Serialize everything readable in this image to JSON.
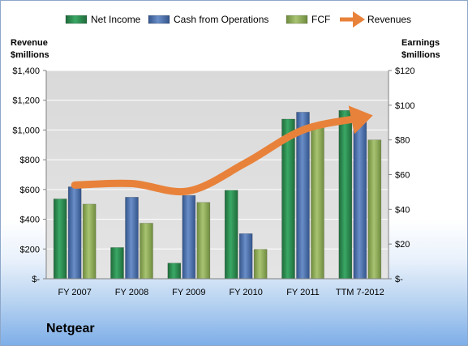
{
  "chart_data": {
    "type": "bar",
    "company": "Netgear",
    "categories": [
      "FY 2007",
      "FY 2008",
      "FY 2009",
      "FY 2010",
      "FY 2011",
      "TTM 7-2012"
    ],
    "series": [
      {
        "name": "Net Income",
        "axis": "right",
        "values": [
          46,
          18,
          9,
          51,
          92,
          97
        ]
      },
      {
        "name": "Cash from Operations",
        "axis": "right",
        "values": [
          53,
          47,
          48,
          26,
          96,
          91
        ]
      },
      {
        "name": "FCF",
        "axis": "right",
        "values": [
          43,
          32,
          44,
          17,
          88,
          80
        ]
      },
      {
        "name": "Revenues",
        "axis": "left",
        "type": "line",
        "values": [
          630,
          640,
          590,
          780,
          1000,
          1080
        ]
      }
    ],
    "left_axis": {
      "title_line1": "Revenue",
      "title_line2": "$millions",
      "ylim": [
        0,
        1400
      ],
      "ticks": [
        0,
        200,
        400,
        600,
        800,
        1000,
        1200,
        1400
      ],
      "tick_labels": [
        "$-",
        "$200",
        "$400",
        "$600",
        "$800",
        "$1,000",
        "$1,200",
        "$1,400"
      ]
    },
    "right_axis": {
      "title_line1": "Earnings",
      "title_line2": "$millions",
      "ylim": [
        0,
        120
      ],
      "ticks": [
        0,
        20,
        40,
        60,
        80,
        100,
        120
      ],
      "tick_labels": [
        "$-",
        "$20",
        "$40",
        "$60",
        "$80",
        "$100",
        "$120"
      ]
    },
    "legend_position": "top",
    "grid": true,
    "colors": {
      "Net Income": "#2e8b4f",
      "Cash from Operations": "#4f71ab",
      "FCF": "#8fae5a",
      "Revenues": "#e8823a",
      "plot_background": "#dcdcdc",
      "gridline": "#ffffff"
    }
  }
}
